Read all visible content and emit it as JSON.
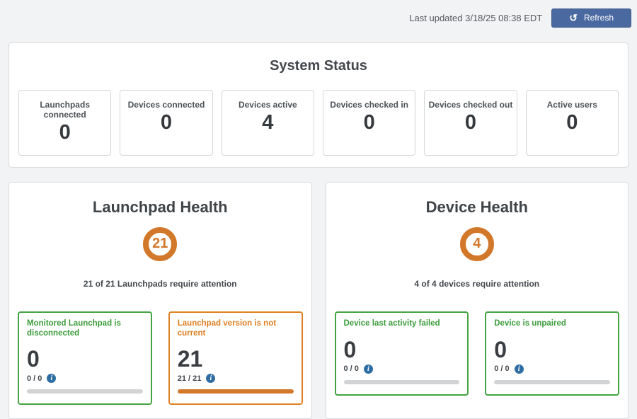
{
  "header": {
    "last_updated": "Last updated 3/18/25 08:38 EDT",
    "refresh_label": "Refresh",
    "refresh_glyph": "↺"
  },
  "system_status": {
    "title": "System Status",
    "cards": [
      {
        "label": "Launchpads connected",
        "value": "0"
      },
      {
        "label": "Devices connected",
        "value": "0"
      },
      {
        "label": "Devices active",
        "value": "4"
      },
      {
        "label": "Devices checked in",
        "value": "0"
      },
      {
        "label": "Devices checked out",
        "value": "0"
      },
      {
        "label": "Active users",
        "value": "0"
      }
    ]
  },
  "launchpad_health": {
    "title": "Launchpad Health",
    "badge_value": "21",
    "caption": "21 of 21 Launchpads require attention",
    "cards": [
      {
        "title": "Monitored Launchpad is disconnected",
        "value": "0",
        "ratio": "0 / 0",
        "status": "green",
        "progress_percent": 0,
        "info_glyph": "i"
      },
      {
        "title": "Launchpad version is not current",
        "value": "21",
        "ratio": "21 / 21",
        "status": "orange",
        "progress_percent": 100,
        "info_glyph": "i"
      }
    ]
  },
  "device_health": {
    "title": "Device Health",
    "badge_value": "4",
    "caption": "4 of 4 devices require attention",
    "cards": [
      {
        "title": "Device last activity failed",
        "value": "0",
        "ratio": "0 / 0",
        "status": "green",
        "progress_percent": 0,
        "info_glyph": "i"
      },
      {
        "title": "Device is unpaired",
        "value": "0",
        "ratio": "0 / 0",
        "status": "green",
        "progress_percent": 0,
        "info_glyph": "i"
      }
    ]
  },
  "colors": {
    "accent_orange": "#d2782a",
    "status_green": "#43a342",
    "status_orange": "#df8122",
    "info_blue": "#2e6da4",
    "refresh_button_blue": "#4a69a0",
    "page_background": "#f2f3f5"
  }
}
